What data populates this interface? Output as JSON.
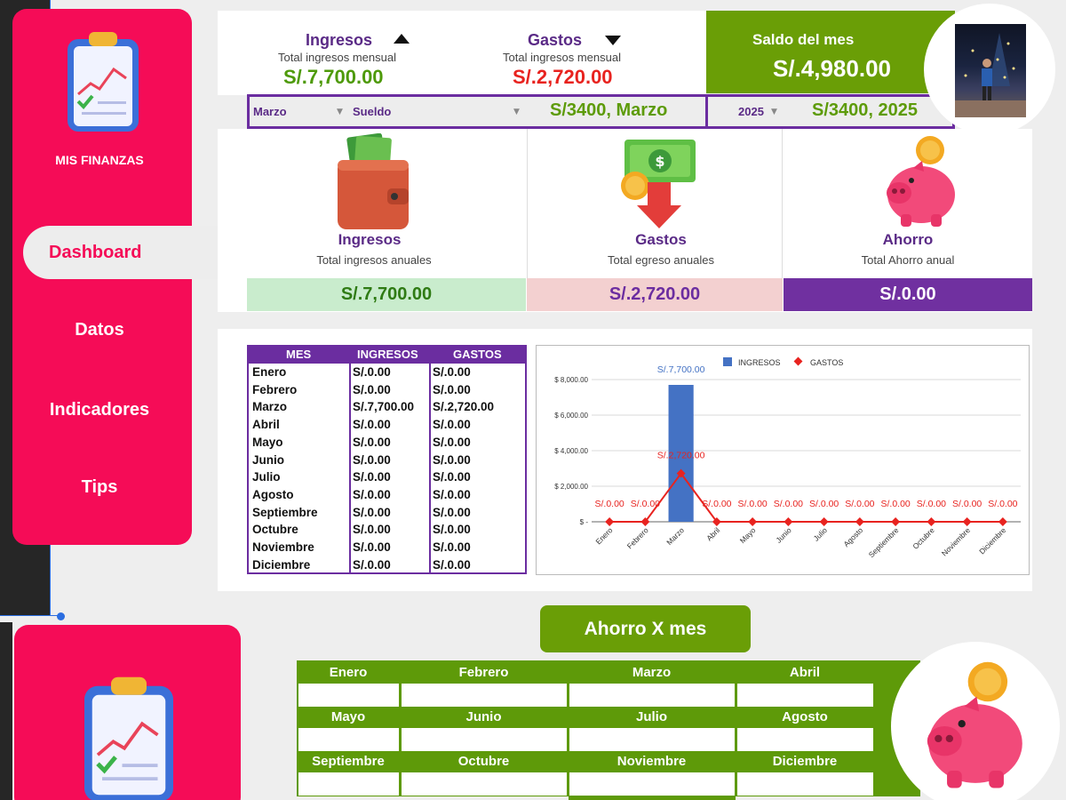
{
  "sidebar": {
    "brand": "MIS FINANZAS",
    "items": [
      {
        "label": "Dashboard",
        "active": true
      },
      {
        "label": "Datos"
      },
      {
        "label": "Indicadores"
      },
      {
        "label": "Tips"
      }
    ],
    "color": "#f50c57"
  },
  "summary": {
    "ingresos": {
      "title": "Ingresos",
      "subtitle": "Total ingresos mensual",
      "value": "S/.7,700.00"
    },
    "gastos": {
      "title": "Gastos",
      "subtitle": "Total ingresos mensual",
      "value": "S/.2,720.00"
    },
    "saldo": {
      "label": "Saldo del mes",
      "value": "S/.4,980.00"
    }
  },
  "filters": {
    "month": "Marzo",
    "category": "Sueldo",
    "category_value": "S/3400, Marzo",
    "year": "2025",
    "year_value": "S/3400, 2025"
  },
  "cards": [
    {
      "title": "Ingresos",
      "subtitle": "Total ingresos anuales",
      "value": "S/.7,700.00",
      "bg": "#c9eccd",
      "color": "#2f7b14",
      "icon": "wallet-icon"
    },
    {
      "title": "Gastos",
      "subtitle": "Total egreso anuales",
      "value": "S/.2,720.00",
      "bg": "#f3d0d0",
      "color": "#6b2da0",
      "icon": "money-down-icon"
    },
    {
      "title": "Ahorro",
      "subtitle": "Total Ahorro anual",
      "value": "S/.0.00",
      "bg": "#7030a0",
      "color": "#ffffff",
      "icon": "piggy-bank-icon"
    }
  ],
  "table": {
    "headers": [
      "MES",
      "INGRESOS",
      "GASTOS"
    ],
    "rows": [
      [
        "Enero",
        "S/.0.00",
        "S/.0.00"
      ],
      [
        "Febrero",
        "S/.0.00",
        "S/.0.00"
      ],
      [
        "Marzo",
        "S/.7,700.00",
        "S/.2,720.00"
      ],
      [
        "Abril",
        "S/.0.00",
        "S/.0.00"
      ],
      [
        "Mayo",
        "S/.0.00",
        "S/.0.00"
      ],
      [
        "Junio",
        "S/.0.00",
        "S/.0.00"
      ],
      [
        "Julio",
        "S/.0.00",
        "S/.0.00"
      ],
      [
        "Agosto",
        "S/.0.00",
        "S/.0.00"
      ],
      [
        "Septiembre",
        "S/.0.00",
        "S/.0.00"
      ],
      [
        "Octubre",
        "S/.0.00",
        "S/.0.00"
      ],
      [
        "Noviembre",
        "S/.0.00",
        "S/.0.00"
      ],
      [
        "Diciembre",
        "S/.0.00",
        "S/.0.00"
      ]
    ]
  },
  "chart_data": {
    "type": "bar",
    "categories": [
      "Enero",
      "Febrero",
      "Marzo",
      "Abril",
      "Mayo",
      "Junio",
      "Julio",
      "Agosto",
      "Septiembre",
      "Octubre",
      "Noviembre",
      "Diciembre"
    ],
    "series": [
      {
        "name": "INGRESOS",
        "type": "bar",
        "values": [
          0,
          0,
          7700,
          0,
          0,
          0,
          0,
          0,
          0,
          0,
          0,
          0
        ],
        "color": "#4472c4",
        "labels": [
          "",
          "",
          "S/.7,700.00",
          "",
          "",
          "",
          "",
          "",
          "",
          "",
          "",
          ""
        ]
      },
      {
        "name": "GASTOS",
        "type": "line",
        "values": [
          0,
          0,
          2720,
          0,
          0,
          0,
          0,
          0,
          0,
          0,
          0,
          0
        ],
        "color": "#e8231f",
        "labels": [
          "S/.0.00",
          "S/.0.00",
          "S/.2,720.00",
          "S/.0.00",
          "S/.0.00",
          "S/.0.00",
          "S/.0.00",
          "S/.0.00",
          "S/.0.00",
          "S/.0.00",
          "S/.0.00",
          "S/.0.00"
        ]
      }
    ],
    "yticks": [
      "$ -",
      "$ 2,000.00",
      "$ 4,000.00",
      "$ 6,000.00",
      "$ 8,000.00"
    ],
    "ylim": [
      0,
      8000
    ],
    "legend": "top",
    "grid": true
  },
  "ahorro_mes": {
    "button": "Ahorro X mes",
    "months": [
      "Enero",
      "Febrero",
      "Marzo",
      "Abril",
      "Mayo",
      "Junio",
      "Julio",
      "Agosto",
      "Septiembre",
      "Octubre",
      "Noviembre",
      "Diciembre"
    ],
    "color": "#6a9e06"
  }
}
